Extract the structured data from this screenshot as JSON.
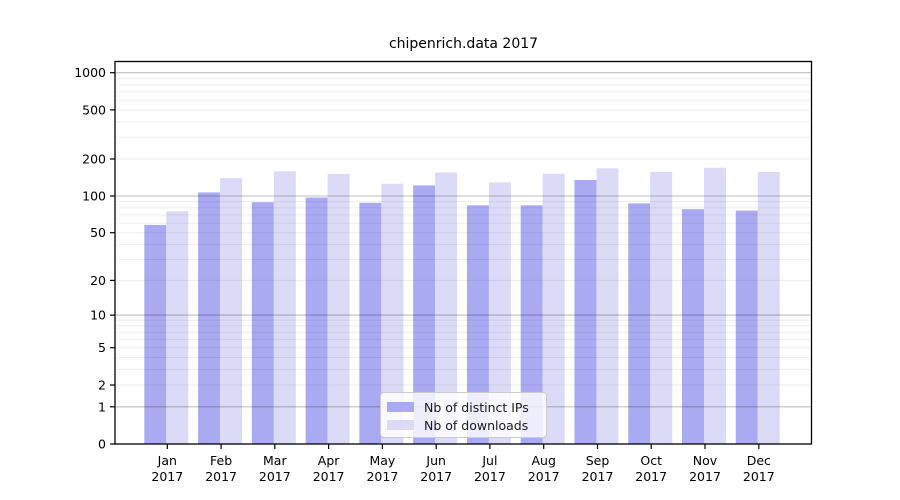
{
  "chart_data": {
    "type": "bar",
    "title": "chipenrich.data 2017",
    "categories": [
      {
        "month": "Jan",
        "year": "2017"
      },
      {
        "month": "Feb",
        "year": "2017"
      },
      {
        "month": "Mar",
        "year": "2017"
      },
      {
        "month": "Apr",
        "year": "2017"
      },
      {
        "month": "May",
        "year": "2017"
      },
      {
        "month": "Jun",
        "year": "2017"
      },
      {
        "month": "Jul",
        "year": "2017"
      },
      {
        "month": "Aug",
        "year": "2017"
      },
      {
        "month": "Sep",
        "year": "2017"
      },
      {
        "month": "Oct",
        "year": "2017"
      },
      {
        "month": "Nov",
        "year": "2017"
      },
      {
        "month": "Dec",
        "year": "2017"
      }
    ],
    "series": [
      {
        "name": "Nb of distinct IPs",
        "color": "#aaaaf2",
        "values": [
          58,
          107,
          89,
          97,
          88,
          122,
          84,
          84,
          135,
          87,
          78,
          76
        ]
      },
      {
        "name": "Nb of downloads",
        "color": "#dbdbf8",
        "values": [
          75,
          140,
          159,
          151,
          126,
          155,
          129,
          152,
          168,
          157,
          170,
          157
        ]
      }
    ],
    "xlabel": "",
    "ylabel": "",
    "y_scale": "log1p",
    "y_ticks": [
      0,
      1,
      2,
      5,
      10,
      20,
      50,
      100,
      200,
      500,
      1000
    ],
    "ylim": [
      0,
      1233
    ],
    "grid": {
      "show": true,
      "drawn_over_bars": true,
      "major_values": [
        1,
        10,
        100,
        1000
      ]
    },
    "legend_position": "inside-bottom-center"
  },
  "colors": {
    "background": "#ffffff",
    "bar_distinct_ips": "#aaaaf2",
    "bar_downloads": "#dbdbf8",
    "grid_major": "rgba(0,0,0,0.25)",
    "grid_minor": "rgba(0,0,0,0.065)",
    "spine": "#000000",
    "text": "#000000",
    "legend_border": "#cccccc",
    "legend_background": "rgba(255,255,255,0.8)"
  }
}
